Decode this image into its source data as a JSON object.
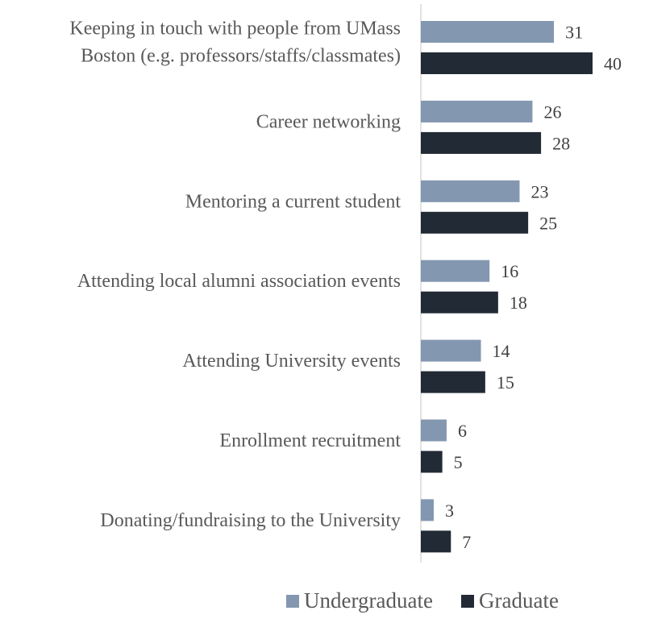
{
  "chart_data": {
    "type": "bar",
    "orientation": "horizontal",
    "categories": [
      [
        "Keeping in touch with people from UMass",
        "Boston (e.g. professors/staffs/classmates)"
      ],
      [
        "Career networking"
      ],
      [
        "Mentoring a current student"
      ],
      [
        "Attending local alumni association events"
      ],
      [
        "Attending University events"
      ],
      [
        "Enrollment recruitment"
      ],
      [
        "Donating/fundraising to the University"
      ]
    ],
    "series": [
      {
        "name": "Undergraduate",
        "values": [
          31,
          26,
          23,
          16,
          14,
          6,
          3
        ],
        "color": "#8497b0"
      },
      {
        "name": "Graduate",
        "values": [
          40,
          28,
          25,
          18,
          15,
          5,
          7
        ],
        "color": "#222a35"
      }
    ],
    "xlim": [
      0,
      40
    ],
    "grid": false,
    "legend": "bottom",
    "data_labels": true
  }
}
